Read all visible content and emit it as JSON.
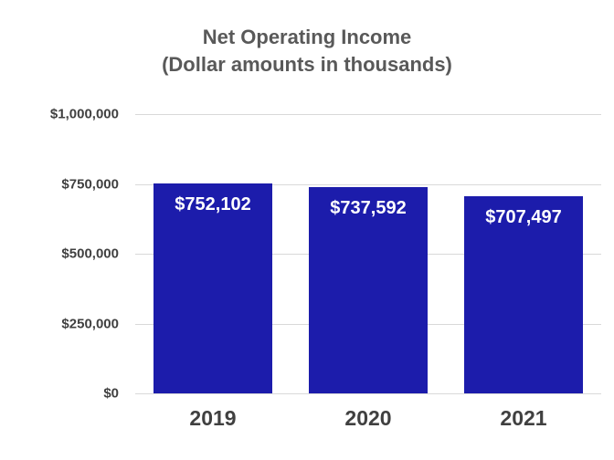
{
  "chart_data": {
    "type": "bar",
    "title": "Net Operating Income",
    "subtitle": "(Dollar amounts in thousands)",
    "categories": [
      "2019",
      "2020",
      "2021"
    ],
    "values": [
      752102,
      737592,
      707497
    ],
    "value_labels": [
      "$752,102",
      "$737,592",
      "$707,497"
    ],
    "ylim": [
      0,
      1000000
    ],
    "yticks": [
      0,
      250000,
      500000,
      750000,
      1000000
    ],
    "ytick_labels": [
      "$0",
      "$250,000",
      "$500,000",
      "$750,000",
      "$1,000,000"
    ],
    "grid": true,
    "legend": false,
    "bar_color": "#1C1CAB",
    "bar_label_color": "#FFFFFF",
    "title_color": "#595959",
    "axis_text_color": "#404040",
    "gridline_color": "#D9D9D9"
  }
}
